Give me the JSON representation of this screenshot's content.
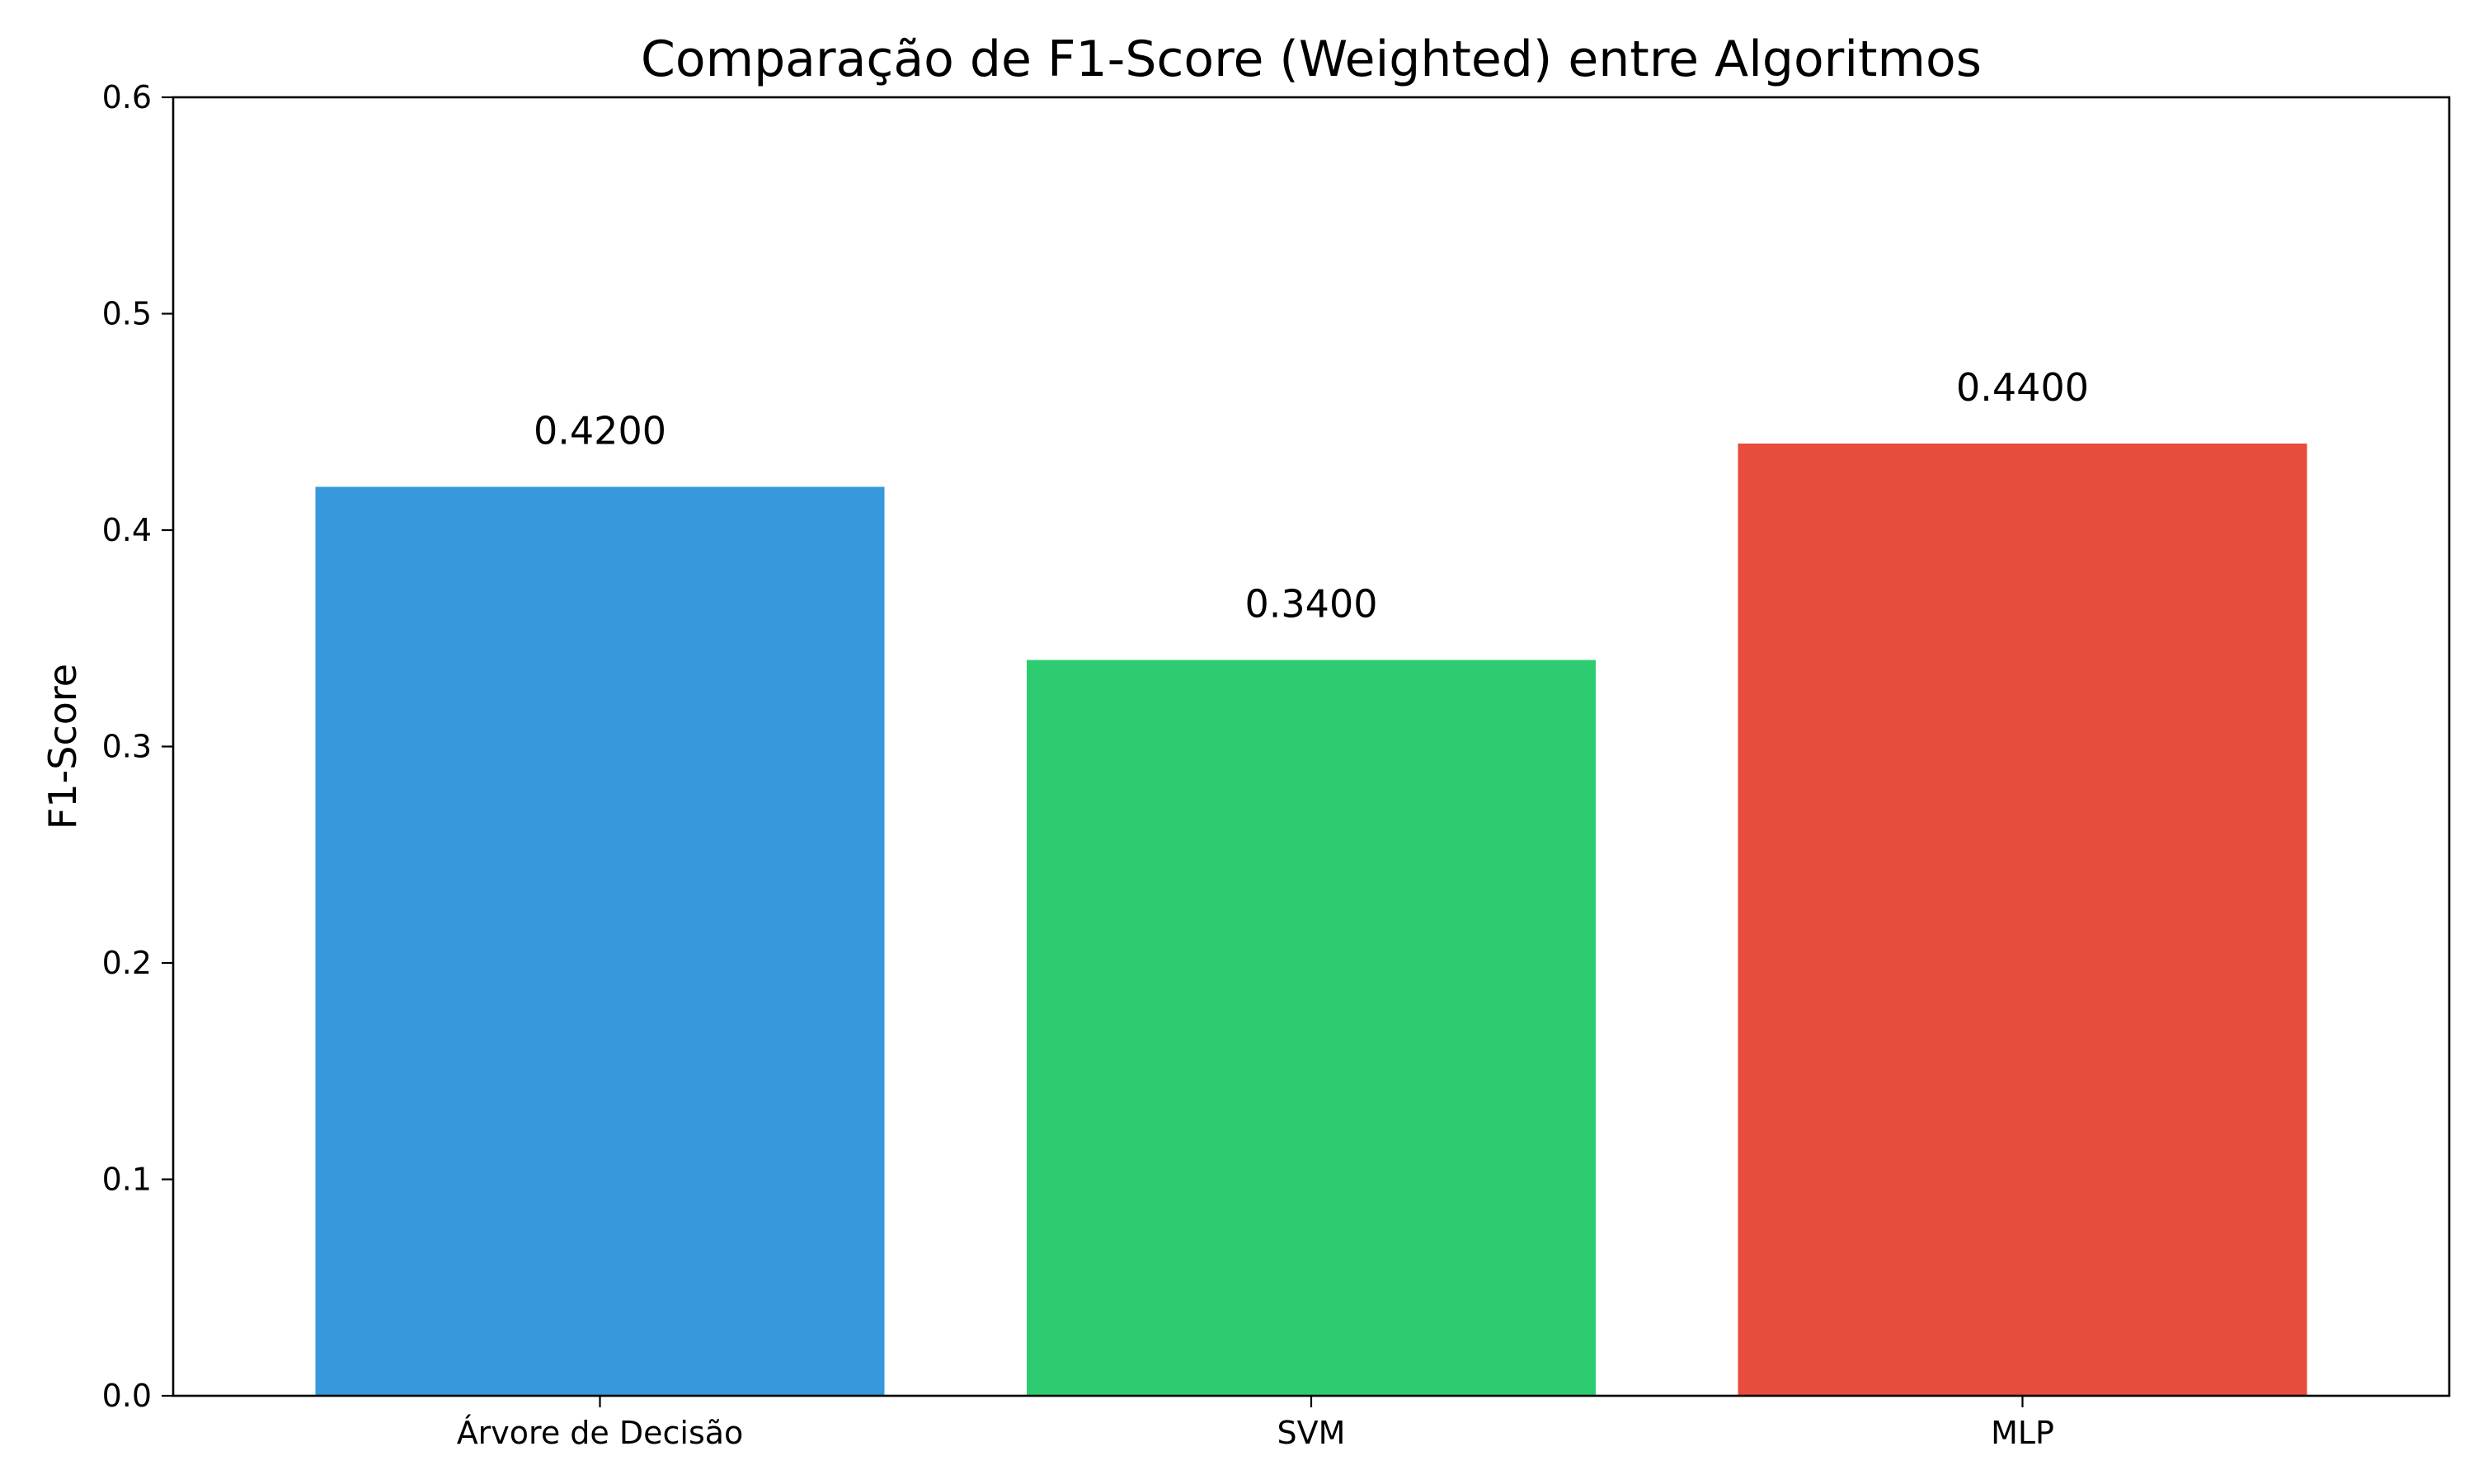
{
  "chart_data": {
    "type": "bar",
    "title": "Comparação de F1-Score (Weighted) entre Algoritmos",
    "xlabel": "",
    "ylabel": "F1-Score",
    "categories": [
      "Árvore de Decisão",
      "SVM",
      "MLP"
    ],
    "values": [
      0.42,
      0.34,
      0.44
    ],
    "value_labels": [
      "0.4200",
      "0.3400",
      "0.4400"
    ],
    "colors": [
      "#3798db",
      "#2ecc71",
      "#e74c3c"
    ],
    "ylim": [
      0,
      0.6
    ],
    "yticks": [
      0.0,
      0.1,
      0.2,
      0.3,
      0.4,
      0.5,
      0.6
    ],
    "ytick_labels": [
      "0.0",
      "0.1",
      "0.2",
      "0.3",
      "0.4",
      "0.5",
      "0.6"
    ],
    "grid": false,
    "legend": "none"
  }
}
